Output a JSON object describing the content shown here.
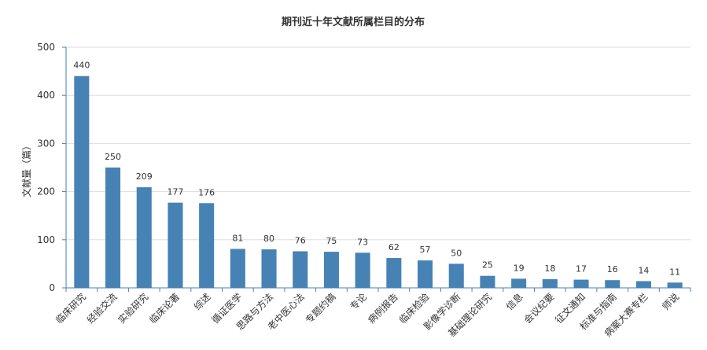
{
  "chart_data": {
    "type": "bar",
    "title": "期刊近十年文献所属栏目的分布",
    "ylabel": "文献量（篇）",
    "xlabel": "",
    "ylim": [
      0,
      500
    ],
    "yticks": [
      0,
      100,
      200,
      300,
      400,
      500
    ],
    "grid": true,
    "legend": "none",
    "bar_color": "#4682b4",
    "categories": [
      "临床研究",
      "经验交流",
      "实验研究",
      "临床论著",
      "综述",
      "循证医学",
      "思路与方法",
      "老中医心法",
      "专题约稿",
      "专论",
      "病例报告",
      "临床检验",
      "影像学诊断",
      "基础理论研究",
      "信息",
      "会议纪要",
      "征文通知",
      "标准与指南",
      "病案大赛专栏",
      "师说"
    ],
    "values": [
      440,
      250,
      209,
      177,
      176,
      81,
      80,
      76,
      75,
      73,
      62,
      57,
      50,
      25,
      19,
      18,
      17,
      16,
      14,
      11
    ]
  }
}
